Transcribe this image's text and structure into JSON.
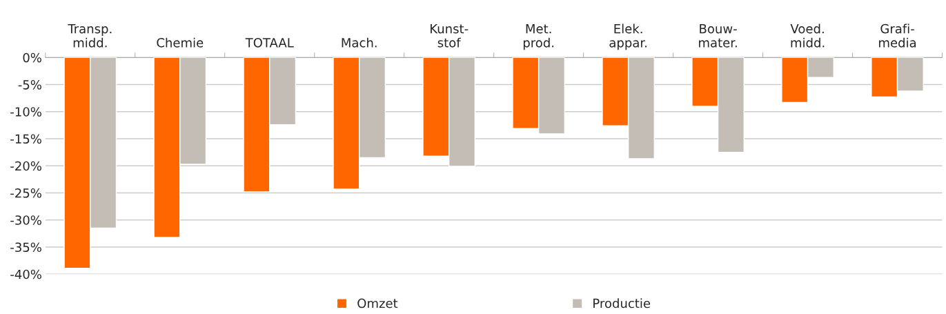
{
  "chart_data": {
    "type": "bar",
    "categories": [
      "Transp.\nmidd.",
      "Chemie",
      "TOTAAL",
      "Mach.",
      "Kunst-\nstof",
      "Met.\nprod.",
      "Elek.\nappar.",
      "Bouw-\nmater.",
      "Voed.\nmidd.",
      "Grafi-\nmedia"
    ],
    "series": [
      {
        "name": "Omzet",
        "color": "#ff6600",
        "values": [
          -38.9,
          -33.2,
          -24.8,
          -24.3,
          -18.2,
          -13.1,
          -12.6,
          -9.0,
          -8.3,
          -7.3
        ]
      },
      {
        "name": "Productie",
        "color": "#c4bdb6",
        "values": [
          -31.5,
          -19.7,
          -12.4,
          -18.5,
          -20.1,
          -14.1,
          -18.7,
          -17.5,
          -3.7,
          -6.2
        ]
      }
    ],
    "ylim": [
      -40,
      0
    ],
    "yticks": [
      {
        "value": 0,
        "label": "0%"
      },
      {
        "value": -5,
        "label": "-5%"
      },
      {
        "value": -10,
        "label": "-10%"
      },
      {
        "value": -15,
        "label": "-15%"
      },
      {
        "value": -20,
        "label": "-20%"
      },
      {
        "value": -25,
        "label": "-25%"
      },
      {
        "value": -30,
        "label": "-30%"
      },
      {
        "value": -35,
        "label": "-35%"
      },
      {
        "value": -40,
        "label": "-40%"
      }
    ],
    "grid": "y",
    "legend": "bottom"
  }
}
